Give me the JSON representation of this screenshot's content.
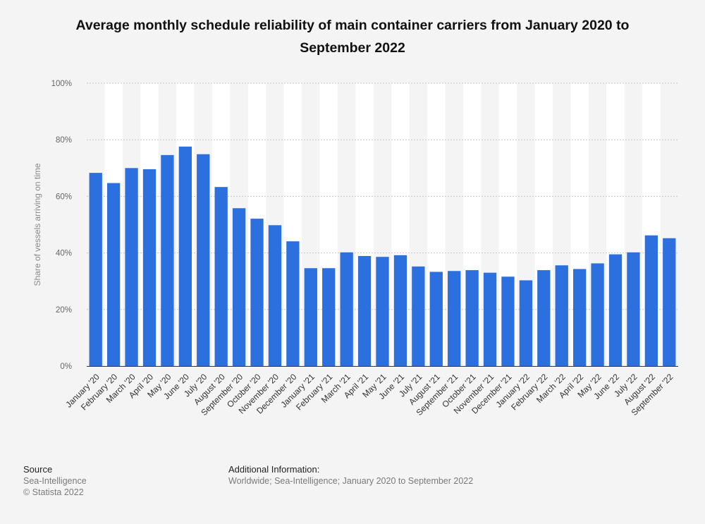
{
  "chart_data": {
    "type": "bar",
    "title": "Average monthly schedule reliability of main container carriers from January 2020 to September 2022",
    "ylabel": "Share of vessels arriving on time",
    "xlabel": "",
    "ylim": [
      0,
      100
    ],
    "yticks": [
      "0%",
      "20%",
      "40%",
      "60%",
      "80%",
      "100%"
    ],
    "grid": true,
    "categories": [
      "January '20",
      "February '20",
      "March '20",
      "April '20",
      "May '20",
      "June '20",
      "July '20",
      "August '20",
      "September '20",
      "October '20",
      "November '20",
      "December '20",
      "January '21",
      "February '21",
      "March '21",
      "April '21",
      "May '21",
      "June '21",
      "July '21",
      "August '21",
      "September '21",
      "October '21",
      "November '21",
      "December '21",
      "January '22",
      "February '22",
      "March '22",
      "April '22",
      "May '22",
      "June '22",
      "July '22",
      "August '22",
      "September '22"
    ],
    "values": [
      68.3,
      64.7,
      70.0,
      69.6,
      74.6,
      77.6,
      74.9,
      63.3,
      55.8,
      52.1,
      49.8,
      44.1,
      34.6,
      34.6,
      40.2,
      38.9,
      38.6,
      39.2,
      35.2,
      33.3,
      33.6,
      33.9,
      33.0,
      31.6,
      30.3,
      33.9,
      35.6,
      34.3,
      36.3,
      39.5,
      40.2,
      46.2,
      45.2
    ],
    "colors": {
      "bar": "#2c6fde",
      "band": "#ffffff",
      "grid": "#c8c8c8",
      "axis": "#333333",
      "tick_text": "#666666",
      "background": "#f4f4f4"
    }
  },
  "footer": {
    "source_heading": "Source",
    "source_lines": [
      "Sea-Intelligence",
      "© Statista 2022"
    ],
    "info_heading": "Additional Information:",
    "info_text": "Worldwide; Sea-Intelligence; January 2020 to September 2022"
  }
}
